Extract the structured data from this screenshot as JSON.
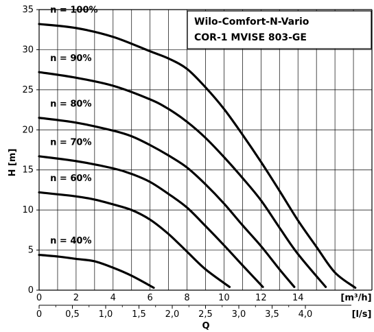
{
  "chart_data": {
    "type": "line",
    "title_lines": [
      "Wilo-Comfort-N-Vario",
      "COR-1 MVISE 803-GE"
    ],
    "ylabel": "H [m]",
    "xlabel": "Q",
    "x_unit_primary": "[m³/h]",
    "x_unit_secondary": "[l/s]",
    "ylim": [
      0,
      35
    ],
    "xlim": [
      0,
      18
    ],
    "grid": true,
    "y_ticks": [
      "0",
      "5",
      "10",
      "15",
      "20",
      "25",
      "30",
      "35"
    ],
    "x_ticks_m3h": [
      "0",
      "2",
      "4",
      "6",
      "8",
      "10",
      "12",
      "14"
    ],
    "x_ticks_ls": [
      "0",
      "0,5",
      "1,0",
      "1,5",
      "2,0",
      "2,5",
      "3,0",
      "3,5",
      "4,0"
    ],
    "series": [
      {
        "name": "n = 100%",
        "x": [
          0,
          2,
          4,
          6,
          7,
          8,
          9,
          10,
          11,
          12,
          13,
          14,
          15,
          16,
          17.1
        ],
        "y": [
          33.2,
          32.7,
          31.6,
          29.8,
          28.9,
          27.6,
          25.3,
          22.6,
          19.4,
          16.0,
          12.4,
          8.7,
          5.4,
          2.2,
          0.3
        ]
      },
      {
        "name": "n = 90%",
        "x": [
          0,
          2,
          4,
          6,
          7,
          8,
          9,
          10,
          11,
          12,
          13,
          14,
          15.5
        ],
        "y": [
          27.2,
          26.5,
          25.5,
          23.8,
          22.6,
          21.0,
          19.0,
          16.6,
          14.0,
          11.2,
          7.8,
          4.5,
          0.4
        ]
      },
      {
        "name": "n = 80%",
        "x": [
          0,
          2,
          4,
          5,
          6,
          7,
          8,
          9,
          10,
          11,
          12,
          13,
          13.8
        ],
        "y": [
          21.5,
          20.9,
          19.9,
          19.2,
          18.1,
          16.8,
          15.3,
          13.2,
          10.8,
          8.1,
          5.5,
          2.6,
          0.4
        ]
      },
      {
        "name": "n = 70%",
        "x": [
          0,
          2,
          4,
          5,
          6,
          7,
          8,
          9,
          10,
          11,
          12.1
        ],
        "y": [
          16.7,
          16.1,
          15.2,
          14.5,
          13.5,
          12.0,
          10.3,
          8.0,
          5.6,
          3.1,
          0.4
        ]
      },
      {
        "name": "n = 60%",
        "x": [
          0,
          2,
          3,
          4,
          5,
          6,
          7,
          8,
          9,
          10.3
        ],
        "y": [
          12.2,
          11.7,
          11.3,
          10.7,
          10.0,
          8.8,
          7.0,
          4.8,
          2.6,
          0.4
        ]
      },
      {
        "name": "n = 40%",
        "x": [
          0,
          1,
          2,
          3,
          4,
          5,
          6.2
        ],
        "y": [
          4.4,
          4.2,
          3.9,
          3.6,
          2.8,
          1.8,
          0.3
        ]
      }
    ]
  }
}
